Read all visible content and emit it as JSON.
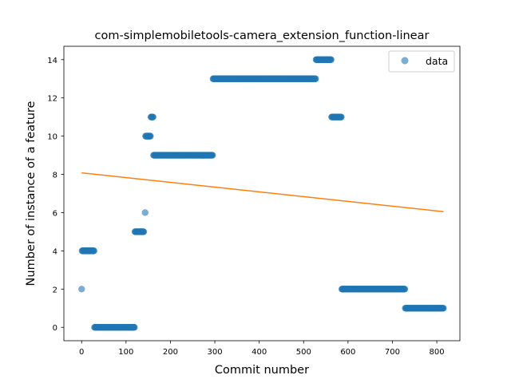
{
  "chart_data": {
    "type": "scatter",
    "title": "com-simplemobiletools-camera_extension_function-linear",
    "xlabel": "Commit number",
    "ylabel": "Number of instance of a feature",
    "xlim": [
      -40,
      852
    ],
    "ylim": [
      -0.7,
      14.7
    ],
    "xticks": [
      0,
      100,
      200,
      300,
      400,
      500,
      600,
      700,
      800
    ],
    "yticks": [
      0,
      2,
      4,
      6,
      8,
      10,
      12,
      14
    ],
    "grid": false,
    "legend_placement": "top-right",
    "colors": {
      "data": "#1f77b4",
      "fit": "#ff7f0e"
    },
    "series": [
      {
        "name": "data",
        "kind": "scatter",
        "segments": [
          {
            "x_start": 0,
            "x_end": 0,
            "y": 2
          },
          {
            "x_start": 1,
            "x_end": 28,
            "y": 4
          },
          {
            "x_start": 29,
            "x_end": 119,
            "y": 0
          },
          {
            "x_start": 120,
            "x_end": 140,
            "y": 5
          },
          {
            "x_start": 143,
            "x_end": 143,
            "y": 6
          },
          {
            "x_start": 144,
            "x_end": 155,
            "y": 10
          },
          {
            "x_start": 156,
            "x_end": 161,
            "y": 11
          },
          {
            "x_start": 162,
            "x_end": 295,
            "y": 9
          },
          {
            "x_start": 296,
            "x_end": 527,
            "y": 13
          },
          {
            "x_start": 528,
            "x_end": 562,
            "y": 14
          },
          {
            "x_start": 563,
            "x_end": 585,
            "y": 11
          },
          {
            "x_start": 586,
            "x_end": 728,
            "y": 2
          },
          {
            "x_start": 729,
            "x_end": 815,
            "y": 1
          }
        ]
      },
      {
        "kind": "line",
        "x": [
          0,
          815
        ],
        "y": [
          8.08,
          6.05
        ]
      }
    ]
  }
}
